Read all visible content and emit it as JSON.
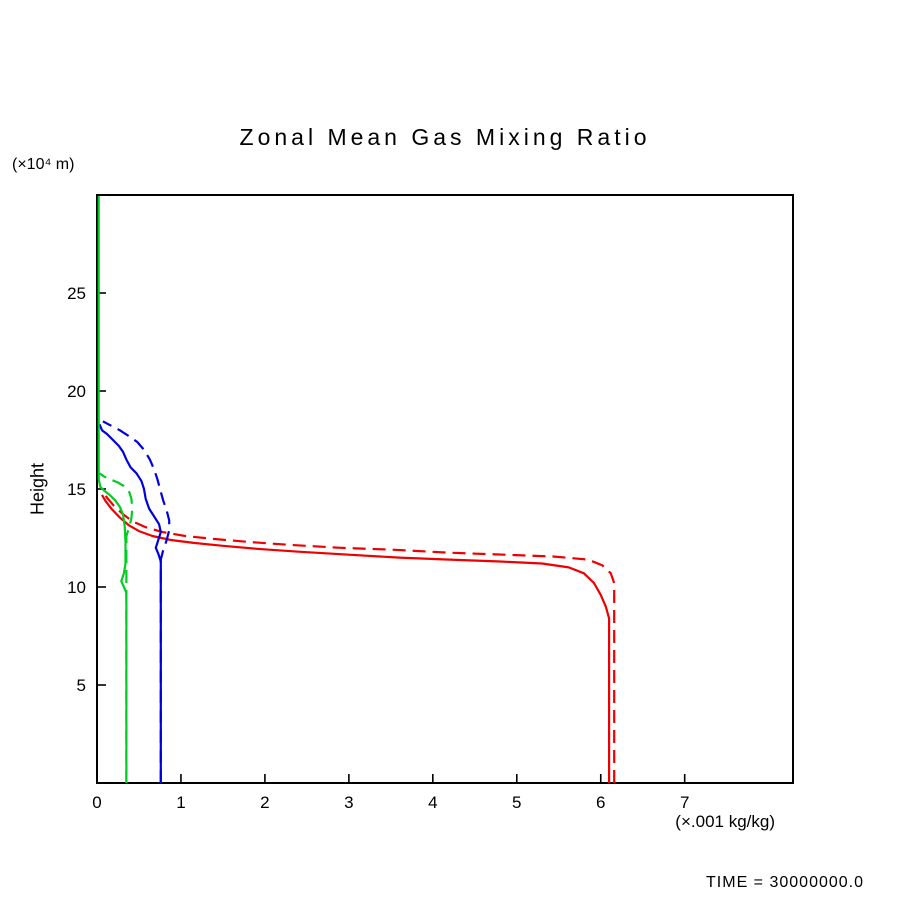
{
  "footer": {
    "time_text": "TIME = 30000000.0"
  },
  "chart_data": {
    "type": "line",
    "title": "Zonal Mean Gas Mixing Ratio",
    "xlabel": "(×.001 kg/kg)",
    "ylabel": "Height",
    "y_unit_label": "(×10⁴ m)",
    "xlim": [
      0,
      8.29
    ],
    "ylim": [
      0,
      30
    ],
    "xticks": [
      0,
      1,
      2,
      3,
      4,
      5,
      6,
      7
    ],
    "yticks": [
      5,
      10,
      15,
      20,
      25
    ],
    "grid": false,
    "legend_position": "none",
    "axis_color": "#000000",
    "series": [
      {
        "name": "red-solid",
        "color": "#ee0000",
        "line_style": "solid",
        "points": [
          [
            6.1,
            0
          ],
          [
            6.1,
            8.4
          ],
          [
            6.06,
            9.0
          ],
          [
            6.0,
            9.6
          ],
          [
            5.92,
            10.2
          ],
          [
            5.8,
            10.7
          ],
          [
            5.62,
            11.0
          ],
          [
            5.3,
            11.2
          ],
          [
            4.8,
            11.3
          ],
          [
            4.2,
            11.4
          ],
          [
            3.6,
            11.5
          ],
          [
            3.0,
            11.65
          ],
          [
            2.4,
            11.8
          ],
          [
            1.9,
            11.95
          ],
          [
            1.5,
            12.1
          ],
          [
            1.15,
            12.25
          ],
          [
            0.88,
            12.4
          ],
          [
            0.66,
            12.6
          ],
          [
            0.5,
            12.85
          ],
          [
            0.38,
            13.15
          ],
          [
            0.27,
            13.55
          ],
          [
            0.17,
            14.0
          ],
          [
            0.1,
            14.4
          ],
          [
            0.06,
            14.7
          ]
        ]
      },
      {
        "name": "red-dashed",
        "color": "#ee0000",
        "line_style": "dashed",
        "points": [
          [
            6.16,
            0
          ],
          [
            6.16,
            10.2
          ],
          [
            6.12,
            10.7
          ],
          [
            6.02,
            11.1
          ],
          [
            5.85,
            11.4
          ],
          [
            5.45,
            11.55
          ],
          [
            4.85,
            11.65
          ],
          [
            4.2,
            11.75
          ],
          [
            3.55,
            11.9
          ],
          [
            2.9,
            12.0
          ],
          [
            2.3,
            12.15
          ],
          [
            1.8,
            12.3
          ],
          [
            1.4,
            12.45
          ],
          [
            1.05,
            12.6
          ],
          [
            0.78,
            12.8
          ],
          [
            0.58,
            13.05
          ],
          [
            0.42,
            13.35
          ],
          [
            0.3,
            13.75
          ],
          [
            0.2,
            14.15
          ],
          [
            0.12,
            14.55
          ],
          [
            0.07,
            14.85
          ]
        ]
      },
      {
        "name": "blue-solid",
        "color": "#0000dd",
        "line_style": "solid",
        "points": [
          [
            0.76,
            0
          ],
          [
            0.76,
            11.3
          ],
          [
            0.73,
            11.7
          ],
          [
            0.7,
            12.0
          ],
          [
            0.73,
            12.4
          ],
          [
            0.76,
            12.8
          ],
          [
            0.74,
            13.2
          ],
          [
            0.68,
            13.6
          ],
          [
            0.62,
            14.0
          ],
          [
            0.58,
            14.5
          ],
          [
            0.56,
            15.0
          ],
          [
            0.53,
            15.4
          ],
          [
            0.47,
            15.8
          ],
          [
            0.4,
            16.1
          ],
          [
            0.35,
            16.5
          ],
          [
            0.31,
            16.9
          ],
          [
            0.26,
            17.2
          ],
          [
            0.19,
            17.5
          ],
          [
            0.12,
            17.8
          ],
          [
            0.06,
            18.0
          ],
          [
            0.03,
            18.3
          ]
        ]
      },
      {
        "name": "blue-dashed",
        "color": "#0000dd",
        "line_style": "dashed",
        "points": [
          [
            0.76,
            0
          ],
          [
            0.76,
            11.4
          ],
          [
            0.79,
            11.9
          ],
          [
            0.83,
            12.4
          ],
          [
            0.86,
            12.9
          ],
          [
            0.86,
            13.4
          ],
          [
            0.83,
            13.9
          ],
          [
            0.79,
            14.4
          ],
          [
            0.75,
            15.0
          ],
          [
            0.72,
            15.5
          ],
          [
            0.68,
            16.0
          ],
          [
            0.63,
            16.5
          ],
          [
            0.56,
            17.0
          ],
          [
            0.48,
            17.4
          ],
          [
            0.38,
            17.7
          ],
          [
            0.27,
            18.0
          ],
          [
            0.16,
            18.25
          ],
          [
            0.07,
            18.45
          ]
        ]
      },
      {
        "name": "green-solid",
        "color": "#00cc22",
        "line_style": "solid",
        "points": [
          [
            0.35,
            0
          ],
          [
            0.35,
            9.7
          ],
          [
            0.32,
            10.0
          ],
          [
            0.29,
            10.3
          ],
          [
            0.32,
            10.7
          ],
          [
            0.34,
            11.2
          ],
          [
            0.34,
            12.3
          ],
          [
            0.33,
            13.1
          ],
          [
            0.31,
            13.7
          ],
          [
            0.27,
            14.1
          ],
          [
            0.22,
            14.4
          ],
          [
            0.15,
            14.7
          ],
          [
            0.09,
            14.9
          ],
          [
            0.04,
            15.1
          ],
          [
            0.02,
            15.5
          ],
          [
            0.02,
            29.95
          ]
        ]
      },
      {
        "name": "green-dashed",
        "color": "#00cc22",
        "line_style": "dashed",
        "points": [
          [
            0.35,
            0
          ],
          [
            0.35,
            12.6
          ],
          [
            0.38,
            13.0
          ],
          [
            0.41,
            13.5
          ],
          [
            0.42,
            14.0
          ],
          [
            0.41,
            14.5
          ],
          [
            0.38,
            14.9
          ],
          [
            0.32,
            15.15
          ],
          [
            0.24,
            15.35
          ],
          [
            0.15,
            15.5
          ],
          [
            0.08,
            15.65
          ],
          [
            0.03,
            15.8
          ]
        ]
      }
    ]
  }
}
